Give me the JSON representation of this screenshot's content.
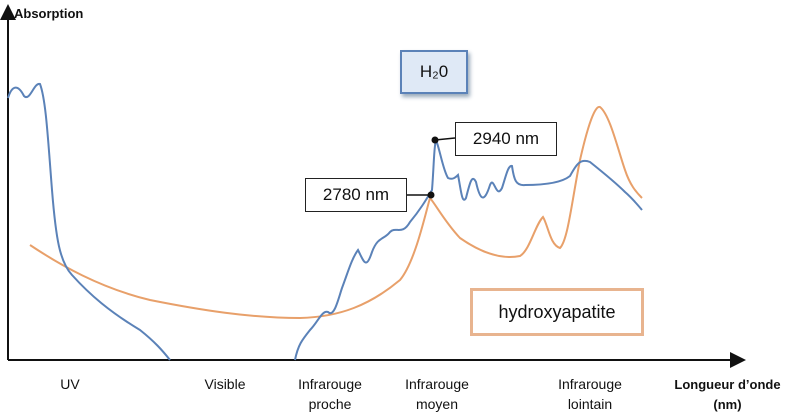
{
  "y_axis_label": "Absorption",
  "x_axis_label": [
    "Longueur d’onde",
    "(nm)"
  ],
  "regions": [
    "UV",
    "Visible",
    "Infrarouge proche",
    "Infrarouge moyen",
    "Infrarouge lointain"
  ],
  "water_label": "H₂0",
  "peaks": [
    "2940 nm",
    "2780 nm"
  ],
  "hydroxyapatite_label": "hydroxyapatite"
}
